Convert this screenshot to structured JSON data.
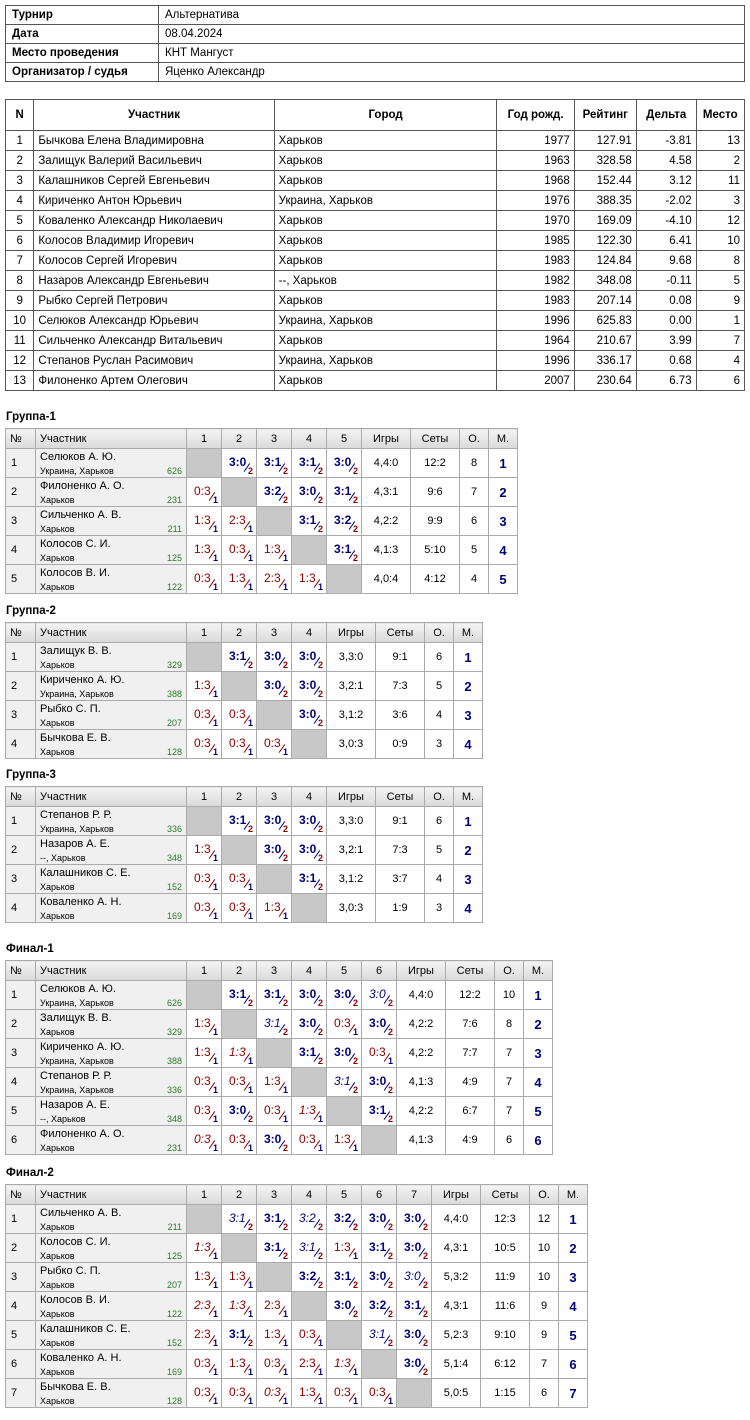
{
  "info": [
    {
      "label": "Турнир",
      "value": "Альтернатива"
    },
    {
      "label": "Дата",
      "value": "08.04.2024"
    },
    {
      "label": "Место проведения",
      "value": "КНТ Мангуст"
    },
    {
      "label": "Организатор / судья",
      "value": "Яценко Александр"
    }
  ],
  "plist_headers": [
    "N",
    "Участник",
    "Город",
    "Год рожд.",
    "Рейтинг",
    "Дельта",
    "Место"
  ],
  "players": [
    [
      "1",
      "Бычкова Елена Владимировна",
      "Харьков",
      "1977",
      "127.91",
      "-3.81",
      "13"
    ],
    [
      "2",
      "Залищук Валерий Васильевич",
      "Харьков",
      "1963",
      "328.58",
      "4.58",
      "2"
    ],
    [
      "3",
      "Калашников Сергей Евгеньевич",
      "Харьков",
      "1968",
      "152.44",
      "3.12",
      "11"
    ],
    [
      "4",
      "Кириченко Антон Юрьевич",
      "Украина, Харьков",
      "1976",
      "388.35",
      "-2.02",
      "3"
    ],
    [
      "5",
      "Коваленко Александр Николаевич",
      "Харьков",
      "1970",
      "169.09",
      "-4.10",
      "12"
    ],
    [
      "6",
      "Колосов Владимир Игоревич",
      "Харьков",
      "1985",
      "122.30",
      "6.41",
      "10"
    ],
    [
      "7",
      "Колосов Сергей Игоревич",
      "Харьков",
      "1983",
      "124.84",
      "9.68",
      "8"
    ],
    [
      "8",
      "Назаров Александр Евгеньевич",
      "--, Харьков",
      "1982",
      "348.08",
      "-0.11",
      "5"
    ],
    [
      "9",
      "Рыбко Сергей Петрович",
      "Харьков",
      "1983",
      "207.14",
      "0.08",
      "9"
    ],
    [
      "10",
      "Селюков Александр Юрьевич",
      "Украина, Харьков",
      "1996",
      "625.83",
      "0.00",
      "1"
    ],
    [
      "11",
      "Сильченко Александр Витальевич",
      "Харьков",
      "1964",
      "210.67",
      "3.99",
      "7"
    ],
    [
      "12",
      "Степанов Руслан Расимович",
      "Украина, Харьков",
      "1996",
      "336.17",
      "0.68",
      "4"
    ],
    [
      "13",
      "Филоненко Артем Олегович",
      "Харьков",
      "2007",
      "230.64",
      "6.73",
      "6"
    ]
  ],
  "group_headers": {
    "num": "№",
    "player": "Участник",
    "games": "Игры",
    "sets": "Сеты",
    "points": "О.",
    "place": "М."
  },
  "groups": [
    {
      "title": "Группа-1",
      "rows": [
        {
          "n": "1",
          "name": "Селюков А. Ю.",
          "city": "Украина, Харьков",
          "rating": "626",
          "cells": [
            "#",
            "3:0",
            "3:1",
            "3:1",
            "3:0"
          ],
          "games": "4,4:0",
          "sets": "12:2",
          "points": "8",
          "place": "1"
        },
        {
          "n": "2",
          "name": "Филоненко А. О.",
          "city": "Харьков",
          "rating": "231",
          "cells": [
            "0:3",
            "#",
            "3:2",
            "3:0",
            "3:1"
          ],
          "games": "4,3:1",
          "sets": "9:6",
          "points": "7",
          "place": "2"
        },
        {
          "n": "3",
          "name": "Сильченко А. В.",
          "city": "Харьков",
          "rating": "211",
          "cells": [
            "1:3",
            "2:3",
            "#",
            "3:1",
            "3:2"
          ],
          "games": "4,2:2",
          "sets": "9:9",
          "points": "6",
          "place": "3"
        },
        {
          "n": "4",
          "name": "Колосов С. И.",
          "city": "Харьков",
          "rating": "125",
          "cells": [
            "1:3",
            "0:3",
            "1:3",
            "#",
            "3:1"
          ],
          "games": "4,1:3",
          "sets": "5:10",
          "points": "5",
          "place": "4"
        },
        {
          "n": "5",
          "name": "Колосов В. И.",
          "city": "Харьков",
          "rating": "122",
          "cells": [
            "0:3",
            "1:3",
            "2:3",
            "1:3",
            "#"
          ],
          "games": "4,0:4",
          "sets": "4:12",
          "points": "4",
          "place": "5"
        }
      ]
    },
    {
      "title": "Группа-2",
      "rows": [
        {
          "n": "1",
          "name": "Залищук В. В.",
          "city": "Харьков",
          "rating": "329",
          "cells": [
            "#",
            "3:1",
            "3:0",
            "3:0"
          ],
          "games": "3,3:0",
          "sets": "9:1",
          "points": "6",
          "place": "1"
        },
        {
          "n": "2",
          "name": "Кириченко А. Ю.",
          "city": "Украина, Харьков",
          "rating": "388",
          "cells": [
            "1:3",
            "#",
            "3:0",
            "3:0"
          ],
          "games": "3,2:1",
          "sets": "7:3",
          "points": "5",
          "place": "2"
        },
        {
          "n": "3",
          "name": "Рыбко С. П.",
          "city": "Харьков",
          "rating": "207",
          "cells": [
            "0:3",
            "0:3",
            "#",
            "3:0"
          ],
          "games": "3,1:2",
          "sets": "3:6",
          "points": "4",
          "place": "3"
        },
        {
          "n": "4",
          "name": "Бычкова Е. В.",
          "city": "Харьков",
          "rating": "128",
          "cells": [
            "0:3",
            "0:3",
            "0:3",
            "#"
          ],
          "games": "3,0:3",
          "sets": "0:9",
          "points": "3",
          "place": "4"
        }
      ]
    },
    {
      "title": "Группа-3",
      "rows": [
        {
          "n": "1",
          "name": "Степанов Р. Р.",
          "city": "Украина, Харьков",
          "rating": "336",
          "cells": [
            "#",
            "3:1",
            "3:0",
            "3:0"
          ],
          "games": "3,3:0",
          "sets": "9:1",
          "points": "6",
          "place": "1"
        },
        {
          "n": "2",
          "name": "Назаров А. Е.",
          "city": "--, Харьков",
          "rating": "348",
          "cells": [
            "1:3",
            "#",
            "3:0",
            "3:0"
          ],
          "games": "3,2:1",
          "sets": "7:3",
          "points": "5",
          "place": "2"
        },
        {
          "n": "3",
          "name": "Калашников С. Е.",
          "city": "Харьков",
          "rating": "152",
          "cells": [
            "0:3",
            "0:3",
            "#",
            "3:1"
          ],
          "games": "3,1:2",
          "sets": "3:7",
          "points": "4",
          "place": "3"
        },
        {
          "n": "4",
          "name": "Коваленко А. Н.",
          "city": "Харьков",
          "rating": "169",
          "cells": [
            "0:3",
            "0:3",
            "1:3",
            "#"
          ],
          "games": "3,0:3",
          "sets": "1:9",
          "points": "3",
          "place": "4"
        }
      ]
    },
    {
      "title": "Финал-1",
      "rows": [
        {
          "n": "1",
          "name": "Селюков А. Ю.",
          "city": "Украина, Харьков",
          "rating": "626",
          "cells": [
            "#",
            "3:1",
            "3:1",
            "3:0",
            "3:0",
            "3:0i"
          ],
          "games": "4,4:0",
          "sets": "12:2",
          "points": "10",
          "place": "1"
        },
        {
          "n": "2",
          "name": "Залищук В. В.",
          "city": "Харьков",
          "rating": "329",
          "cells": [
            "1:3",
            "#",
            "3:1i",
            "3:0",
            "0:3",
            "3:0"
          ],
          "games": "4,2:2",
          "sets": "7:6",
          "points": "8",
          "place": "2"
        },
        {
          "n": "3",
          "name": "Кириченко А. Ю.",
          "city": "Украина, Харьков",
          "rating": "388",
          "cells": [
            "1:3",
            "1:3i",
            "#",
            "3:1",
            "3:0",
            "0:3"
          ],
          "games": "4,2:2",
          "sets": "7:7",
          "points": "7",
          "place": "3"
        },
        {
          "n": "4",
          "name": "Степанов Р. Р.",
          "city": "Украина, Харьков",
          "rating": "336",
          "cells": [
            "0:3",
            "0:3",
            "1:3",
            "#",
            "3:1i",
            "3:0"
          ],
          "games": "4,1:3",
          "sets": "4:9",
          "points": "7",
          "place": "4"
        },
        {
          "n": "5",
          "name": "Назаров А. Е.",
          "city": "--, Харьков",
          "rating": "348",
          "cells": [
            "0:3",
            "3:0",
            "0:3",
            "1:3i",
            "#",
            "3:1"
          ],
          "games": "4,2:2",
          "sets": "6:7",
          "points": "7",
          "place": "5"
        },
        {
          "n": "6",
          "name": "Филоненко А. О.",
          "city": "Харьков",
          "rating": "231",
          "cells": [
            "0:3i",
            "0:3",
            "3:0",
            "0:3",
            "1:3",
            "#"
          ],
          "games": "4,1:3",
          "sets": "4:9",
          "points": "6",
          "place": "6"
        }
      ]
    },
    {
      "title": "Финал-2",
      "rows": [
        {
          "n": "1",
          "name": "Сильченко А. В.",
          "city": "Харьков",
          "rating": "211",
          "cells": [
            "#",
            "3:1i",
            "3:1",
            "3:2i",
            "3:2",
            "3:0",
            "3:0"
          ],
          "games": "4,4:0",
          "sets": "12:3",
          "points": "12",
          "place": "1"
        },
        {
          "n": "2",
          "name": "Колосов С. И.",
          "city": "Харьков",
          "rating": "125",
          "cells": [
            "1:3i",
            "#",
            "3:1",
            "3:1i",
            "1:3",
            "3:1",
            "3:0"
          ],
          "games": "4,3:1",
          "sets": "10:5",
          "points": "10",
          "place": "2"
        },
        {
          "n": "3",
          "name": "Рыбко С. П.",
          "city": "Харьков",
          "rating": "207",
          "cells": [
            "1:3",
            "1:3",
            "#",
            "3:2",
            "3:1",
            "3:0",
            "3:0i"
          ],
          "games": "5,3:2",
          "sets": "11:9",
          "points": "10",
          "place": "3"
        },
        {
          "n": "4",
          "name": "Колосов В. И.",
          "city": "Харьков",
          "rating": "122",
          "cells": [
            "2:3i",
            "1:3i",
            "2:3",
            "#",
            "3:0",
            "3:2",
            "3:1"
          ],
          "games": "4,3:1",
          "sets": "11:6",
          "points": "9",
          "place": "4"
        },
        {
          "n": "5",
          "name": "Калашников С. Е.",
          "city": "Харьков",
          "rating": "152",
          "cells": [
            "2:3",
            "3:1",
            "1:3",
            "0:3",
            "#",
            "3:1i",
            "3:0"
          ],
          "games": "5,2:3",
          "sets": "9:10",
          "points": "9",
          "place": "5"
        },
        {
          "n": "6",
          "name": "Коваленко А. Н.",
          "city": "Харьков",
          "rating": "169",
          "cells": [
            "0:3",
            "1:3",
            "0:3",
            "2:3",
            "1:3i",
            "#",
            "3:0"
          ],
          "games": "5,1:4",
          "sets": "6:12",
          "points": "7",
          "place": "6"
        },
        {
          "n": "7",
          "name": "Бычкова Е. В.",
          "city": "Харьков",
          "rating": "128",
          "cells": [
            "0:3",
            "0:3",
            "0:3i",
            "1:3",
            "0:3",
            "0:3",
            "#"
          ],
          "games": "5,0:5",
          "sets": "1:15",
          "points": "6",
          "place": "7"
        }
      ]
    }
  ]
}
